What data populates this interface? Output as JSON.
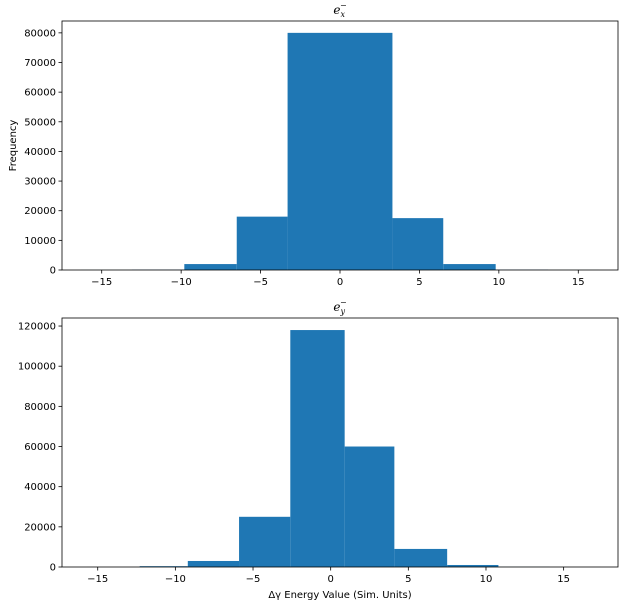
{
  "chart_data": [
    {
      "type": "bar",
      "title_base": "e",
      "title_sub": "x",
      "title_sup": "−",
      "xlabel": "",
      "ylabel": "Frequency",
      "xlim": [
        -17.5,
        17.5
      ],
      "ylim": [
        0,
        84000
      ],
      "xticks": [
        -15,
        -10,
        -5,
        0,
        5,
        10,
        15
      ],
      "xtick_labels": [
        "−15",
        "−10",
        "−5",
        "0",
        "5",
        "10",
        "15"
      ],
      "yticks": [
        0,
        10000,
        20000,
        30000,
        40000,
        50000,
        60000,
        70000,
        80000
      ],
      "ytick_labels": [
        "0",
        "10000",
        "20000",
        "30000",
        "40000",
        "50000",
        "60000",
        "70000",
        "80000"
      ],
      "bin_edges": [
        -16.3,
        -13.1,
        -9.8,
        -6.5,
        -3.3,
        3.3,
        6.5,
        9.8,
        13.1,
        16.3
      ],
      "values": [
        20,
        80,
        2000,
        18000,
        80000,
        17500,
        2000,
        80,
        20
      ],
      "color": "#1f77b4"
    },
    {
      "type": "bar",
      "title_base": "e",
      "title_sub": "y",
      "title_sup": "−",
      "xlabel": "Δγ Energy Value (Sim. Units)",
      "ylabel": "",
      "xlim": [
        -17.3,
        18.5
      ],
      "ylim": [
        0,
        124000
      ],
      "xticks": [
        -15,
        -10,
        -5,
        0,
        5,
        10,
        15
      ],
      "xtick_labels": [
        "−15",
        "−10",
        "−5",
        "0",
        "5",
        "10",
        "15"
      ],
      "yticks": [
        0,
        20000,
        40000,
        60000,
        80000,
        100000,
        120000
      ],
      "ytick_labels": [
        "0",
        "20000",
        "40000",
        "60000",
        "80000",
        "100000",
        "120000"
      ],
      "bin_edges": [
        -15.7,
        -12.3,
        -9.2,
        -5.9,
        -2.6,
        0.9,
        4.1,
        7.5,
        10.8,
        14.1,
        17.4
      ],
      "values": [
        20,
        400,
        3000,
        25000,
        118000,
        60000,
        9000,
        1000,
        80,
        20
      ],
      "color": "#1f77b4"
    }
  ]
}
